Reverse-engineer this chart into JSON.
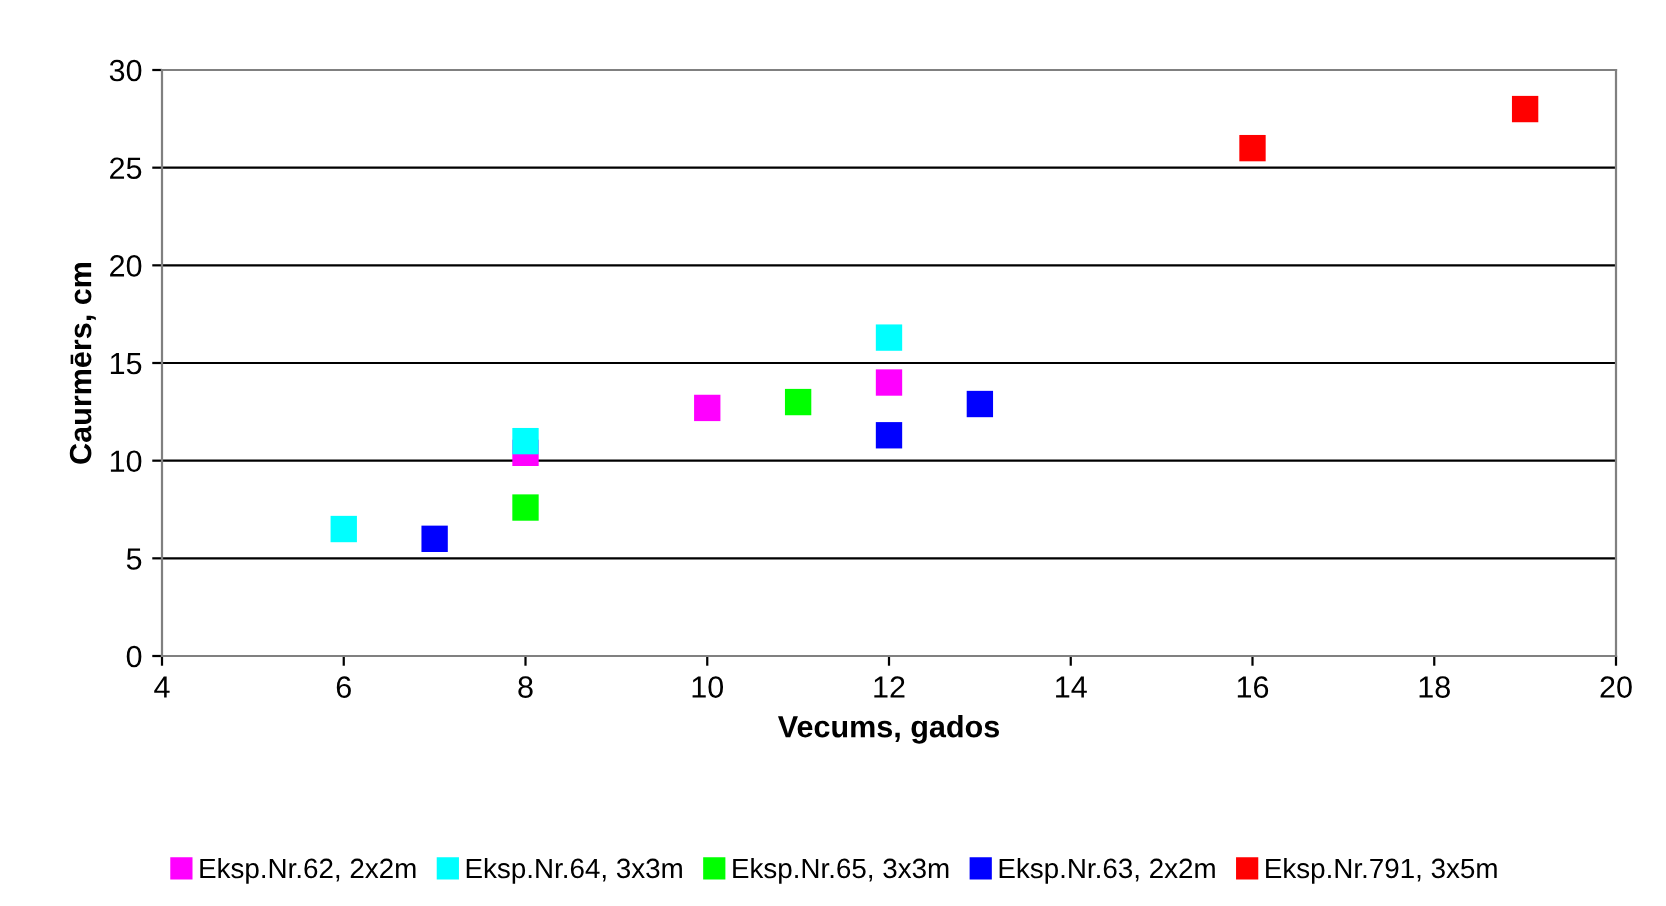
{
  "chart_data": {
    "type": "scatter",
    "xlabel": "Vecums, gados",
    "ylabel": "Caurmērs, cm",
    "xlim": [
      4,
      20
    ],
    "xticks": [
      4,
      6,
      8,
      10,
      12,
      14,
      16,
      18,
      20
    ],
    "ylim": [
      0,
      30
    ],
    "yticks": [
      0,
      5,
      10,
      15,
      20,
      25,
      30
    ],
    "grid": "y",
    "legend": "bottom",
    "marker": "square",
    "series": [
      {
        "name": "Eksp.Nr.62, 2x2m",
        "color": "#ff00ff",
        "x": [
          8,
          10,
          12
        ],
        "values": [
          10.4,
          12.7,
          14.0
        ]
      },
      {
        "name": "Eksp.Nr.64, 3x3m",
        "color": "#00ffff",
        "x": [
          6,
          8,
          12
        ],
        "values": [
          6.5,
          11.0,
          16.3
        ]
      },
      {
        "name": "Eksp.Nr.65, 3x3m",
        "color": "#00ff00",
        "x": [
          8,
          11
        ],
        "values": [
          7.6,
          13.0
        ]
      },
      {
        "name": "Eksp.Nr.63, 2x2m",
        "color": "#0000ff",
        "x": [
          7,
          12,
          13
        ],
        "values": [
          6.0,
          11.3,
          12.9
        ]
      },
      {
        "name": "Eksp.Nr.791, 3x5m",
        "color": "#ff0000",
        "x": [
          16,
          19
        ],
        "values": [
          26.0,
          28.0
        ]
      }
    ]
  }
}
